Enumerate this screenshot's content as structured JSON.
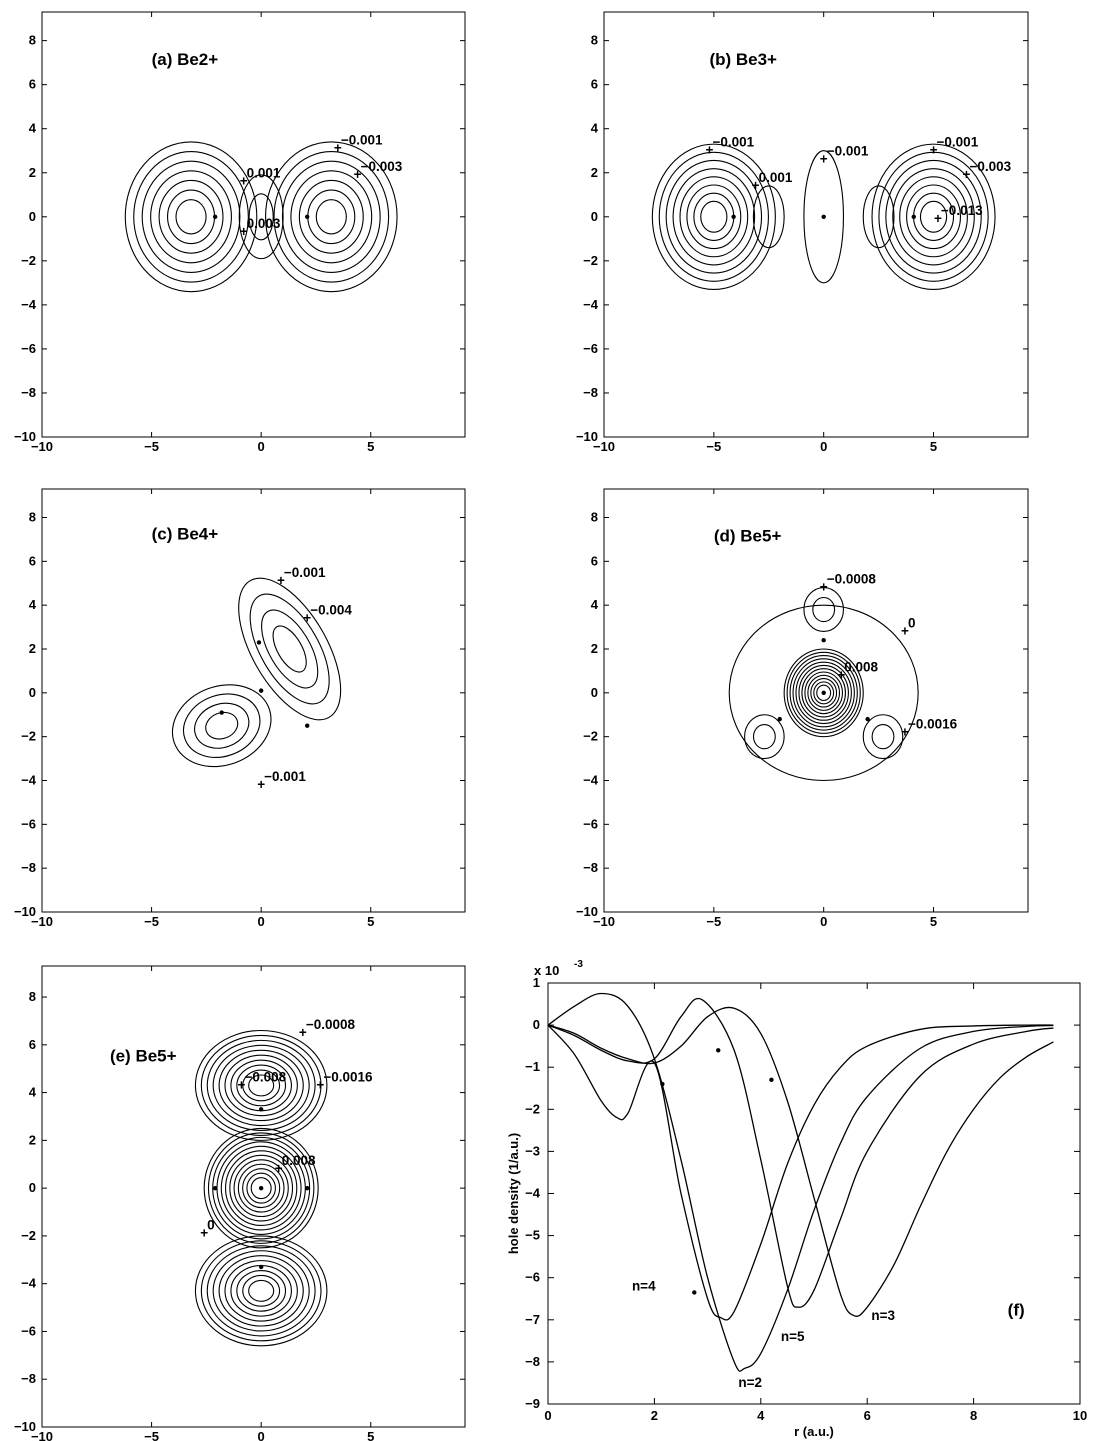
{
  "panels": [
    {
      "title": "(a) Be2+",
      "xticks": [
        -10,
        -5,
        0,
        5
      ],
      "yticks": [
        -10,
        -8,
        -6,
        -4,
        -2,
        0,
        2,
        4,
        6,
        8
      ],
      "annotations": [
        "-0.001",
        "-0.003",
        "0.001",
        "0.003"
      ]
    },
    {
      "title": "(b) Be3+",
      "xticks": [
        -10,
        -5,
        0,
        5
      ],
      "yticks": [
        -10,
        -8,
        -6,
        -4,
        -2,
        0,
        2,
        4,
        6,
        8
      ],
      "annotations": [
        "-0.001",
        "0.001",
        "-0.001",
        "-0.001",
        "-0.003",
        "-0.013"
      ]
    },
    {
      "title": "(c) Be4+",
      "xticks": [
        -10,
        -5,
        0,
        5
      ],
      "yticks": [
        -10,
        -8,
        -6,
        -4,
        -2,
        0,
        2,
        4,
        6,
        8
      ],
      "annotations": [
        "-0.001",
        "-0.004",
        "-0.001"
      ]
    },
    {
      "title": "(d) Be5+",
      "xticks": [
        -10,
        -5,
        0,
        5
      ],
      "yticks": [
        -10,
        -8,
        -6,
        -4,
        -2,
        0,
        2,
        4,
        6,
        8
      ],
      "annotations": [
        "-0.0008",
        "0",
        "0.008",
        "-0.0016"
      ]
    },
    {
      "title": "(e) Be5+",
      "xticks": [
        -10,
        -5,
        0,
        5
      ],
      "yticks": [
        -10,
        -8,
        -6,
        -4,
        -2,
        0,
        2,
        4,
        6,
        8
      ],
      "annotations": [
        "-0.0008",
        "-0.008",
        "-0.0016",
        "0.008",
        "0"
      ]
    }
  ],
  "chart_data": {
    "type": "line",
    "panel_label": "(f)",
    "xlabel": "r (a.u.)",
    "ylabel": "hole density (1/a.u.)",
    "scale_label": "x 10",
    "scale_exponent": "-3",
    "xlim": [
      0,
      10
    ],
    "ylim": [
      -9,
      1
    ],
    "xticks": [
      0,
      2,
      4,
      6,
      8,
      10
    ],
    "yticks": [
      1,
      0,
      -1,
      -2,
      -3,
      -4,
      -5,
      -6,
      -7,
      -8,
      -9
    ],
    "series": [
      {
        "name": "n=2",
        "x": [
          0,
          0.5,
          1.0,
          1.5,
          2.0,
          2.5,
          3.0,
          3.5,
          3.7,
          4.0,
          4.5,
          5.0,
          5.5,
          6.0,
          7.0,
          8.0,
          9.0,
          9.5
        ],
        "y": [
          0,
          0.45,
          0.75,
          0.45,
          -0.8,
          -3.2,
          -6.0,
          -8.0,
          -8.15,
          -7.8,
          -6.3,
          -4.4,
          -2.8,
          -1.7,
          -0.55,
          -0.15,
          -0.03,
          -0.01
        ]
      },
      {
        "name": "n=3",
        "x": [
          0,
          0.5,
          1.0,
          1.5,
          2.0,
          2.5,
          3.0,
          3.5,
          4.0,
          4.5,
          5.0,
          5.5,
          5.75,
          6.0,
          6.5,
          7.0,
          7.5,
          8.0,
          8.5,
          9.0,
          9.5
        ],
        "y": [
          0,
          -0.2,
          -0.55,
          -0.8,
          -0.9,
          -0.5,
          0.2,
          0.4,
          -0.2,
          -1.8,
          -4.1,
          -6.4,
          -6.9,
          -6.7,
          -5.7,
          -4.3,
          -3.0,
          -2.0,
          -1.25,
          -0.75,
          -0.4
        ]
      },
      {
        "name": "n=4",
        "x": [
          0,
          0.5,
          1.0,
          1.3,
          1.5,
          2.0,
          2.5,
          3.0,
          3.25,
          3.5,
          4.0,
          4.5,
          5.0,
          5.5,
          6.0,
          7.0,
          8.0,
          9.0,
          9.5
        ],
        "y": [
          0,
          -0.7,
          -1.8,
          -2.2,
          -2.1,
          -0.9,
          -4.0,
          -6.5,
          -6.95,
          -6.8,
          -5.2,
          -3.3,
          -1.9,
          -1.0,
          -0.5,
          -0.1,
          -0.02,
          0,
          0
        ]
      },
      {
        "name": "n=5",
        "x": [
          0,
          0.5,
          1.0,
          1.5,
          2.0,
          2.5,
          2.9,
          3.5,
          4.0,
          4.5,
          4.7,
          5.0,
          5.5,
          6.0,
          7.0,
          8.0,
          9.0,
          9.5
        ],
        "y": [
          0,
          -0.25,
          -0.6,
          -0.85,
          -0.8,
          0.2,
          0.6,
          -0.6,
          -3.2,
          -6.2,
          -6.7,
          -6.3,
          -4.6,
          -3.0,
          -1.2,
          -0.45,
          -0.15,
          -0.07
        ]
      }
    ],
    "curve_labels": [
      "n=4",
      "n=5",
      "n=3",
      "n=2"
    ]
  }
}
